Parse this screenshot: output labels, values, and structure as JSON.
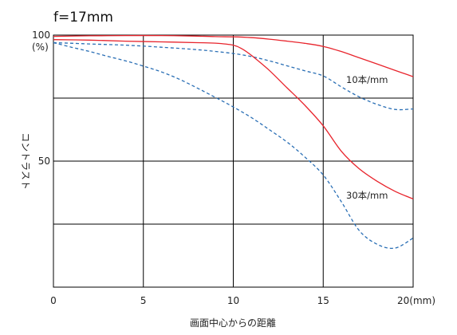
{
  "chart_data": {
    "type": "line",
    "title": "f=17mm",
    "xlabel": "画面中心からの距離",
    "ylabel": "コントラスト",
    "xlim": [
      0,
      20
    ],
    "ylim": [
      0,
      100
    ],
    "x_ticks": [
      {
        "value": 0,
        "label": "0"
      },
      {
        "value": 5,
        "label": "5"
      },
      {
        "value": 10,
        "label": "10"
      },
      {
        "value": 15,
        "label": "15"
      },
      {
        "value": 20,
        "label": "20(mm)"
      }
    ],
    "y_ticks": [
      {
        "value": 100,
        "label": "100"
      },
      {
        "value": 50,
        "label": "50"
      }
    ],
    "y_unit": "(%)",
    "grid": true,
    "colors": {
      "solid_series": "#e8242c",
      "dashed_series": "#2a6fb5",
      "grid": "#000000"
    },
    "series": [
      {
        "group": "10本/mm",
        "style": "solid",
        "x": [
          0,
          2,
          4,
          6,
          8,
          9,
          10,
          11,
          12,
          13,
          14,
          15,
          16,
          17,
          18,
          19,
          20
        ],
        "y": [
          99.5,
          99.7,
          99.8,
          99.8,
          99.6,
          99.4,
          99.3,
          99.0,
          98.4,
          97.6,
          96.7,
          95.5,
          93.5,
          91.0,
          88.5,
          86.0,
          83.5
        ]
      },
      {
        "group": "10本/mm",
        "style": "dashed",
        "x": [
          0,
          2,
          4,
          6,
          8,
          9,
          10,
          11,
          12,
          13,
          14,
          15,
          16,
          17,
          18,
          19,
          20
        ],
        "y": [
          97.0,
          96.5,
          96.0,
          95.2,
          94.2,
          93.5,
          92.7,
          91.5,
          89.8,
          87.8,
          85.8,
          83.8,
          79.5,
          75.5,
          72.5,
          70.5,
          70.7
        ]
      },
      {
        "group": "30本/mm",
        "style": "solid",
        "x": [
          0,
          2,
          4,
          6,
          8,
          9,
          10,
          10.5,
          11,
          12,
          13,
          14,
          15,
          16,
          17,
          18,
          19,
          20
        ],
        "y": [
          98.2,
          98.0,
          97.6,
          97.3,
          97.0,
          96.8,
          96.0,
          94.5,
          92.0,
          86.0,
          79.0,
          72.0,
          64.0,
          54.0,
          47.0,
          42.0,
          38.0,
          35.0
        ]
      },
      {
        "group": "30本/mm",
        "style": "dashed",
        "x": [
          0,
          1,
          2,
          3,
          4,
          5,
          6,
          7,
          8,
          9,
          10,
          11,
          12,
          13,
          14,
          15,
          16,
          17,
          18,
          19,
          20
        ],
        "y": [
          97.0,
          95.2,
          93.5,
          91.6,
          89.8,
          87.7,
          85.4,
          82.5,
          79.0,
          75.3,
          71.5,
          67.3,
          62.5,
          57.5,
          51.5,
          44.5,
          34.0,
          22.5,
          17.0,
          15.5,
          19.5
        ]
      }
    ],
    "annotations": [
      "10本/mm",
      "30本/mm"
    ]
  }
}
